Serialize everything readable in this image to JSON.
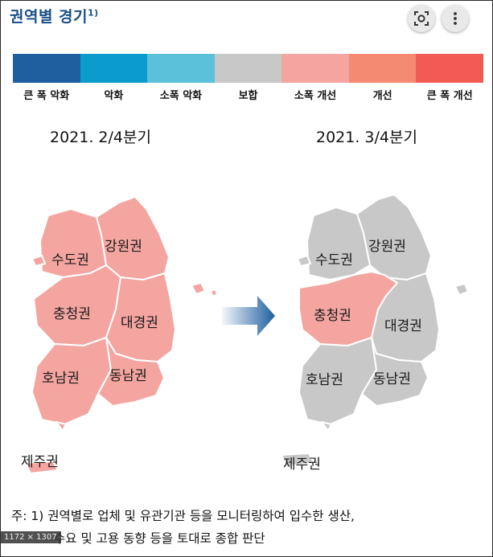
{
  "title": "권역별 경기",
  "title_footnote": "1)",
  "toolbar": {
    "lens_icon": "lens-search-icon",
    "more_icon": "vertical-ellipsis-icon"
  },
  "legend": {
    "colors": [
      "#1f5fa0",
      "#0b9bcc",
      "#5bc1da",
      "#c8c8c8",
      "#f4a5a0",
      "#f48a72",
      "#f25a56"
    ],
    "labels": [
      "큰 폭 악화",
      "악화",
      "소폭 악화",
      "보합",
      "소폭 개선",
      "개선",
      "큰 폭 개선"
    ]
  },
  "maps": {
    "left": {
      "period": "2021. 2/4분기",
      "regions": [
        {
          "name": "수도권",
          "status": "소폭 개선"
        },
        {
          "name": "강원권",
          "status": "소폭 개선"
        },
        {
          "name": "충청권",
          "status": "소폭 개선"
        },
        {
          "name": "대경권",
          "status": "소폭 개선"
        },
        {
          "name": "호남권",
          "status": "소폭 개선"
        },
        {
          "name": "동남권",
          "status": "소폭 개선"
        },
        {
          "name": "제주권",
          "status": "소폭 개선"
        }
      ]
    },
    "right": {
      "period": "2021. 3/4분기",
      "regions": [
        {
          "name": "수도권",
          "status": "보합"
        },
        {
          "name": "강원권",
          "status": "보합"
        },
        {
          "name": "충청권",
          "status": "소폭 개선"
        },
        {
          "name": "대경권",
          "status": "보합"
        },
        {
          "name": "호남권",
          "status": "보합"
        },
        {
          "name": "동남권",
          "status": "보합"
        },
        {
          "name": "제주권",
          "status": "보합"
        }
      ]
    }
  },
  "note": {
    "line1": "주: 1) 권역별로 업체 및 유관기관 등을 모니터링하여 입수한 생산,",
    "line2": "수요 및 고용 동향 등을 토대로 종합 판단"
  },
  "image_size_badge": "1172 × 1307"
}
